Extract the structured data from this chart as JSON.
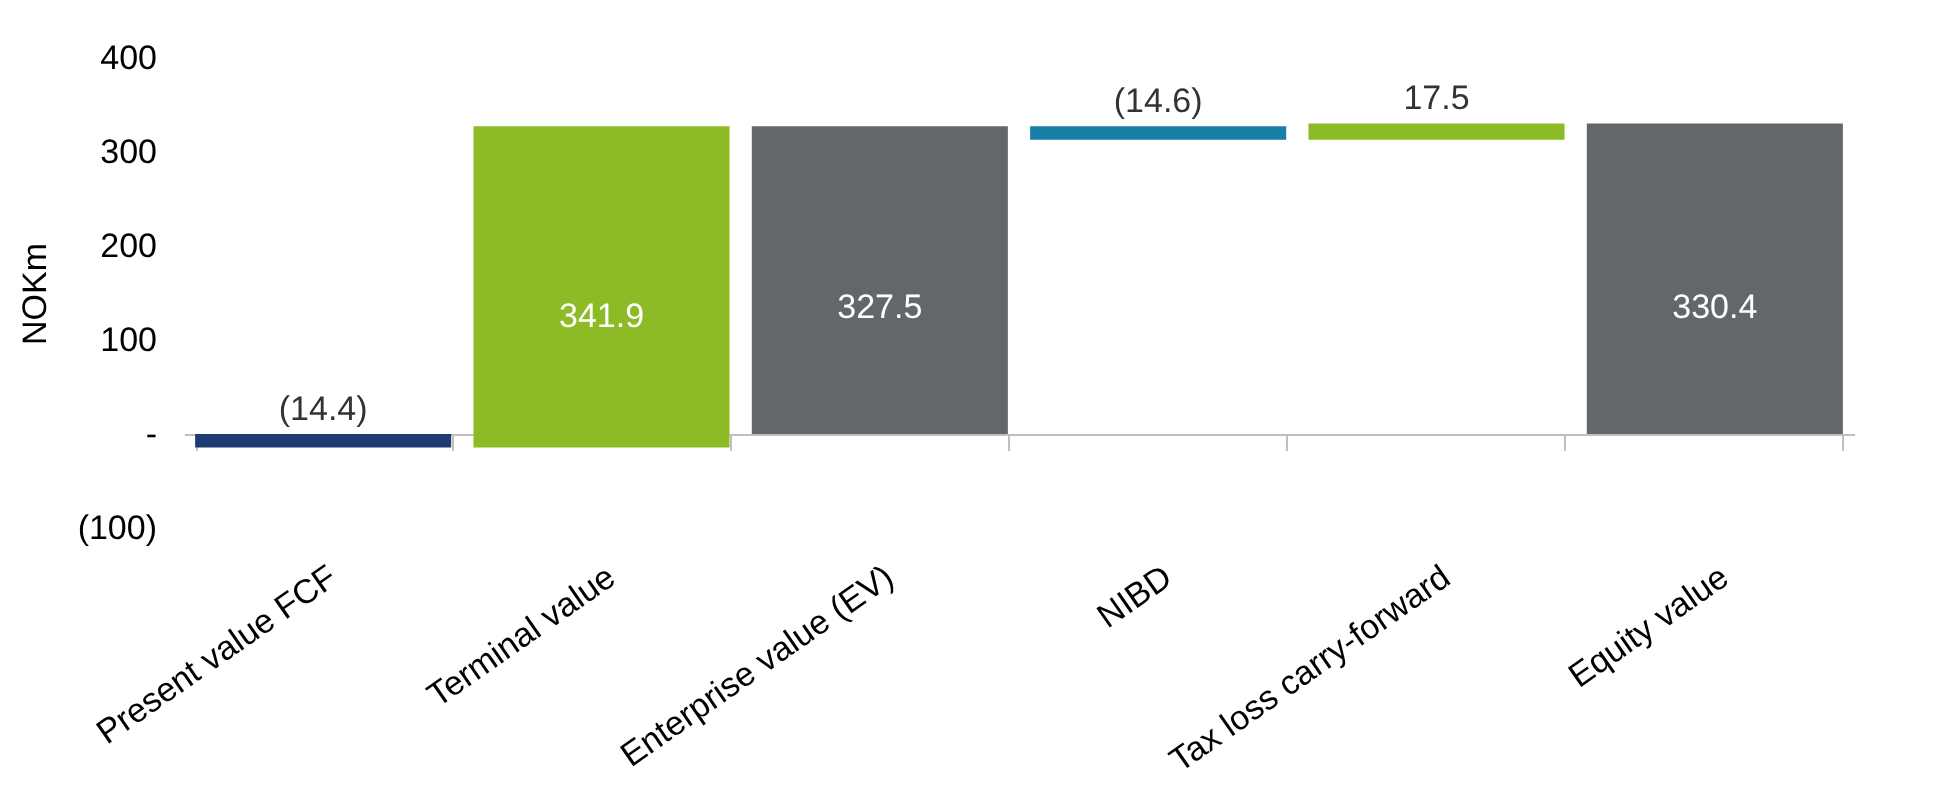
{
  "chart_data": {
    "type": "bar",
    "ylabel": "NOKm",
    "categories": [
      "Present value FCF",
      "Terminal value",
      "Enterprise value (EV)",
      "NIBD",
      "Tax loss carry-forward",
      "Equity value"
    ],
    "values": [
      -14.4,
      341.9,
      327.5,
      -14.6,
      17.5,
      330.4
    ],
    "base": [
      0,
      -14.4,
      0,
      327.5,
      312.9,
      0
    ],
    "colors": [
      "#1f3b73",
      "#8dbb25",
      "#63666a",
      "#1a7fa8",
      "#8dbb25",
      "#63666a"
    ],
    "value_labels": [
      "(14.4)",
      "341.9",
      "327.5",
      "(14.6)",
      "17.5",
      "330.4"
    ],
    "ylim": [
      -100,
      400
    ],
    "yticks": [
      {
        "value": -100,
        "label": "(100)"
      },
      {
        "value": 0,
        "label": "-"
      },
      100,
      200,
      300,
      400
    ]
  }
}
